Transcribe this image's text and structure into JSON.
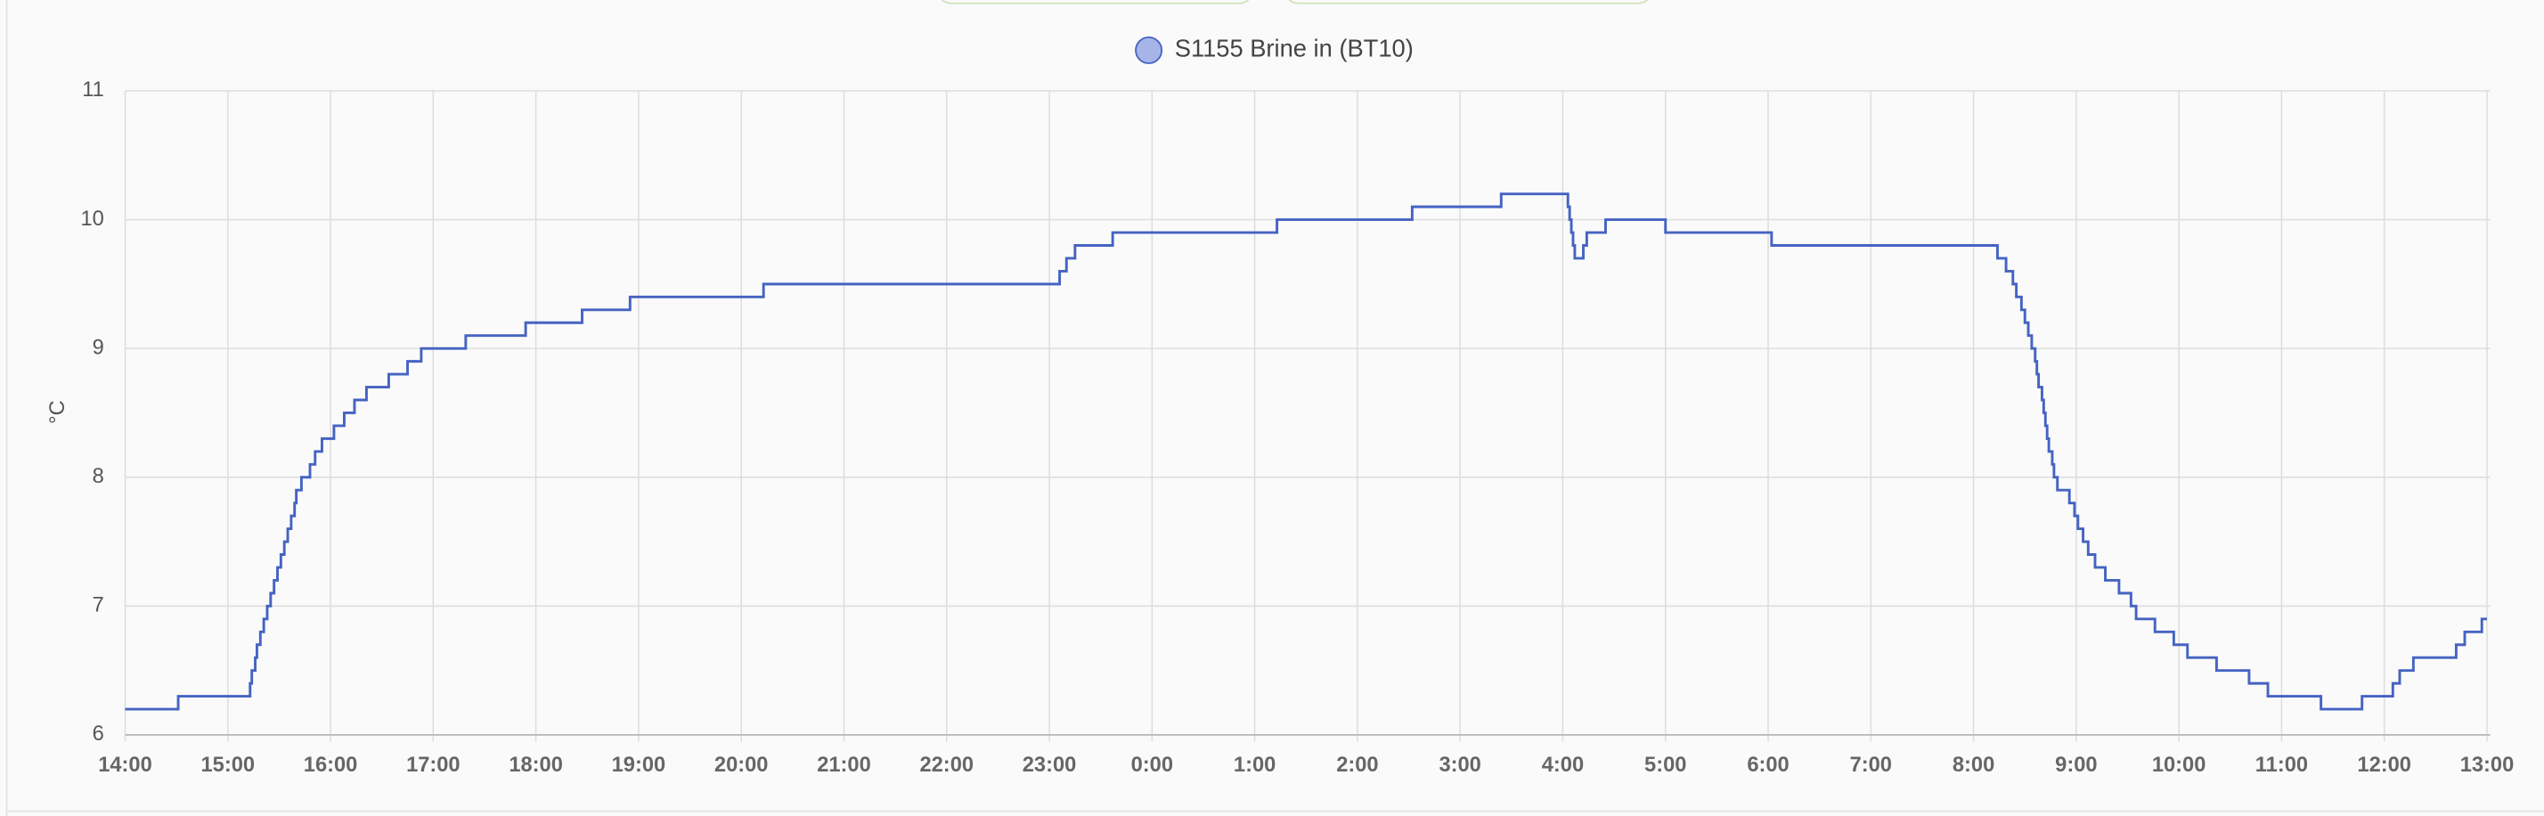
{
  "chart_data": {
    "type": "step-line",
    "y_label": "°C",
    "xlim": [
      "14:00",
      "13:00"
    ],
    "xticks": [
      "14:00",
      "15:00",
      "16:00",
      "17:00",
      "18:00",
      "19:00",
      "20:00",
      "21:00",
      "22:00",
      "23:00",
      "0:00",
      "1:00",
      "2:00",
      "3:00",
      "4:00",
      "5:00",
      "6:00",
      "7:00",
      "8:00",
      "9:00",
      "10:00",
      "11:00",
      "12:00",
      "13:00"
    ],
    "ylim": [
      6,
      11
    ],
    "yticks": [
      6,
      7,
      8,
      9,
      10,
      11
    ],
    "grid": true,
    "legend": "top",
    "x": [
      "14:00",
      "14:31",
      "15:13",
      "15:14",
      "15:16",
      "15:17",
      "15:19",
      "15:21",
      "15:23",
      "15:25",
      "15:27",
      "15:29",
      "15:31",
      "15:33",
      "15:35",
      "15:37",
      "15:39",
      "15:40",
      "15:43",
      "15:48",
      "15:51",
      "15:55",
      "16:02",
      "16:08",
      "16:14",
      "16:21",
      "16:34",
      "16:45",
      "16:53",
      "17:19",
      "17:54",
      "18:27",
      "18:55",
      "20:13",
      "23:06",
      "23:10",
      "23:15",
      "23:37",
      "1:13",
      "2:32",
      "3:24",
      "4:03",
      "4:04",
      "4:05",
      "4:06",
      "4:07",
      "4:12",
      "4:14",
      "4:25",
      "5:00",
      "6:02",
      "8:14",
      "8:19",
      "8:23",
      "8:25",
      "8:28",
      "8:30",
      "8:32",
      "8:34",
      "8:36",
      "8:37",
      "8:38",
      "8:40",
      "8:41",
      "8:42",
      "8:43",
      "8:44",
      "8:46",
      "8:47",
      "8:49",
      "8:56",
      "8:59",
      "9:01",
      "9:04",
      "9:07",
      "9:11",
      "9:17",
      "9:25",
      "9:32",
      "9:35",
      "9:46",
      "9:57",
      "10:05",
      "10:22",
      "10:41",
      "10:52",
      "11:23",
      "11:47",
      "12:05",
      "12:09",
      "12:17",
      "12:42",
      "12:47",
      "12:57",
      "13:00"
    ],
    "series": [
      {
        "name": "S1155 Brine in (BT10)",
        "color": "#4563c2",
        "legend_fill": "#a6b4e8",
        "values": [
          6.2,
          6.3,
          6.4,
          6.5,
          6.6,
          6.7,
          6.8,
          6.9,
          7.0,
          7.1,
          7.2,
          7.3,
          7.4,
          7.5,
          7.6,
          7.7,
          7.8,
          7.9,
          8.0,
          8.1,
          8.2,
          8.3,
          8.4,
          8.5,
          8.6,
          8.7,
          8.8,
          8.9,
          9.0,
          9.1,
          9.2,
          9.3,
          9.4,
          9.5,
          9.6,
          9.7,
          9.8,
          9.9,
          10.0,
          10.1,
          10.2,
          10.1,
          10.0,
          9.9,
          9.8,
          9.7,
          9.8,
          9.9,
          10.0,
          9.9,
          9.8,
          9.7,
          9.6,
          9.5,
          9.4,
          9.3,
          9.2,
          9.1,
          9.0,
          8.9,
          8.8,
          8.7,
          8.6,
          8.5,
          8.4,
          8.3,
          8.2,
          8.1,
          8.0,
          7.9,
          7.8,
          7.7,
          7.6,
          7.5,
          7.4,
          7.3,
          7.2,
          7.1,
          7.0,
          6.9,
          6.8,
          6.7,
          6.6,
          6.5,
          6.4,
          6.3,
          6.2,
          6.3,
          6.4,
          6.5,
          6.6,
          6.7,
          6.8,
          6.9,
          6.9
        ]
      }
    ]
  }
}
